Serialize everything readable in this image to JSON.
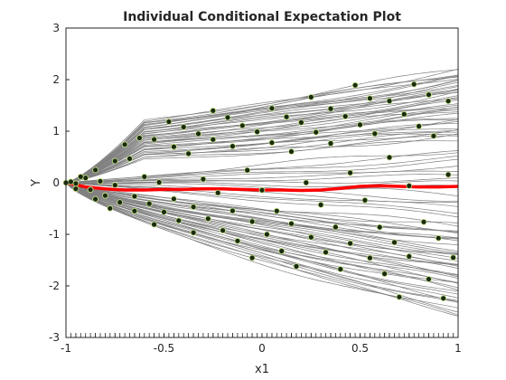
{
  "chart_data": {
    "type": "line",
    "title": "Individual Conditional Expectation Plot",
    "xlabel": "x1",
    "ylabel": "Y",
    "xlim": [
      -1,
      1
    ],
    "ylim": [
      -3,
      3
    ],
    "xticks": [
      -1,
      -0.5,
      0,
      0.5,
      1
    ],
    "xtick_labels": [
      "-1",
      "-0.5",
      "0",
      "0.5",
      "1"
    ],
    "yticks": [
      -3,
      -2,
      -1,
      0,
      1,
      2,
      3
    ],
    "ytick_labels": [
      "-3",
      "-2",
      "-1",
      "0",
      "1",
      "2",
      "3"
    ],
    "grid": false,
    "legend": "none",
    "colors": {
      "ice_lines": "#808080",
      "average_line": "#ff0000",
      "observation_fill": "#1a2a10",
      "observation_edge": "#c8e68c",
      "rug": "#262626",
      "axes": "#262626"
    },
    "ice_curve_count": 100,
    "average_curve": {
      "x": [
        -1,
        -0.9,
        -0.8,
        -0.7,
        -0.6,
        -0.5,
        -0.4,
        -0.3,
        -0.2,
        -0.1,
        0,
        0.1,
        0.2,
        0.3,
        0.4,
        0.5,
        0.6,
        0.7,
        0.8,
        0.9,
        1
      ],
      "y": [
        0,
        -0.08,
        -0.12,
        -0.14,
        -0.14,
        -0.13,
        -0.13,
        -0.12,
        -0.12,
        -0.13,
        -0.14,
        -0.14,
        -0.15,
        -0.14,
        -0.11,
        -0.07,
        -0.06,
        -0.07,
        -0.08,
        -0.08,
        -0.07
      ]
    },
    "curve_end_values": {
      "upper_max": 2.2,
      "upper_min": 0.8,
      "lower_max": -0.8,
      "lower_min": -2.6
    }
  }
}
